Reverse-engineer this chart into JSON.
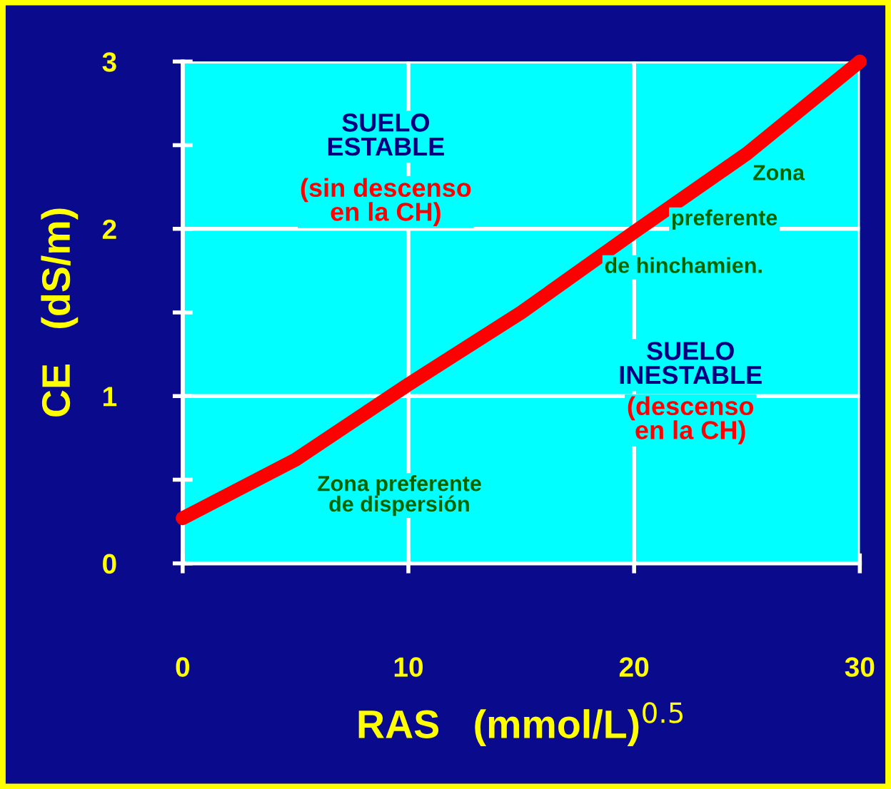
{
  "chart_data": {
    "type": "line",
    "xlabel": "RAS   (mmol/L)$^{0.5}$",
    "ylabel": "CE   (dS/m)",
    "x": [
      0,
      5,
      10,
      15,
      20,
      25,
      30
    ],
    "series": [
      {
        "color": "#ff0000",
        "values": [
          0.27,
          0.62,
          1.07,
          1.5,
          1.98,
          2.45,
          3.0
        ]
      }
    ],
    "xlim": [
      0,
      30
    ],
    "ylim": [
      0,
      3
    ],
    "xticks": [
      0,
      10,
      20,
      30
    ],
    "yticks": [
      0,
      {
        "value": 0.5,
        "label": null
      },
      1,
      {
        "value": 1.5,
        "label": null
      },
      2,
      {
        "value": 2.5,
        "label": null
      },
      3
    ],
    "grid": true,
    "marker": "none",
    "line_style": "solid",
    "annotations": [
      "SUELO\nESTABLE",
      "(sin descenso\nen la CH)",
      "Zona",
      "preferente",
      "de hinchamien.",
      "SUELO\nINESTABLE",
      "(descenso\nen la CH)",
      "Zona preferente\nde dispersión"
    ]
  }
}
